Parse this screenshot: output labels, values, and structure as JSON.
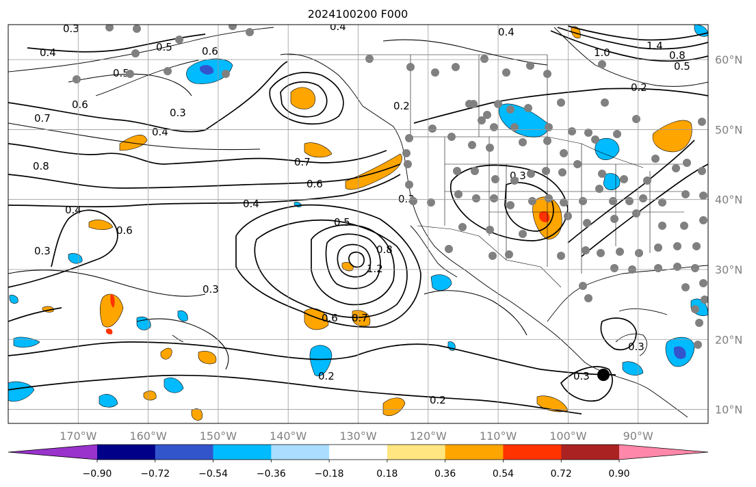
{
  "title": "2024100200 F000",
  "map": {
    "lon_labels": [
      "170°W",
      "160°W",
      "150°W",
      "140°W",
      "130°W",
      "120°W",
      "110°W",
      "100°W",
      "90°W"
    ],
    "lat_labels": [
      "60°N",
      "50°N",
      "40°N",
      "30°N",
      "20°N",
      "10°N"
    ],
    "lon_range": [
      -180,
      -80
    ],
    "lat_range": [
      8,
      65
    ],
    "grid": true,
    "contour_labels": [
      "0.3",
      "0.4",
      "0.5",
      "0.6",
      "0.7",
      "0.8",
      "0.4",
      "0.5",
      "0.6",
      "0.3",
      "0.4",
      "0.2",
      "0.7",
      "0.6",
      "0.4",
      "0.3",
      "0.5",
      "0.8",
      "1.2",
      "0.6",
      "0.7",
      "0.3",
      "0.2",
      "0.3",
      "0.2",
      "0.4",
      "0.3",
      "0.2",
      "0.3",
      "0.5",
      "0.8",
      "1.4",
      "0.3",
      "0.4",
      "0.6",
      "1.0"
    ]
  },
  "colorbar": {
    "tick_labels": [
      "−0.90",
      "−0.72",
      "−0.54",
      "−0.36",
      "−0.18",
      "0.18",
      "0.36",
      "0.54",
      "0.72",
      "0.90"
    ],
    "colors": [
      "#9933cc",
      "#000088",
      "#3355cc",
      "#00bbff",
      "#aaddff",
      "#ffffff",
      "#ffe680",
      "#ffa500",
      "#ff3300",
      "#aa2222",
      "#ff88aa"
    ]
  },
  "colors": {
    "shade_pos1": "#ffa500",
    "shade_pos2": "#ff3300",
    "shade_neg1": "#00bbff",
    "shade_neg2": "#3355cc",
    "station": "#808080",
    "marker": "#000000"
  }
}
